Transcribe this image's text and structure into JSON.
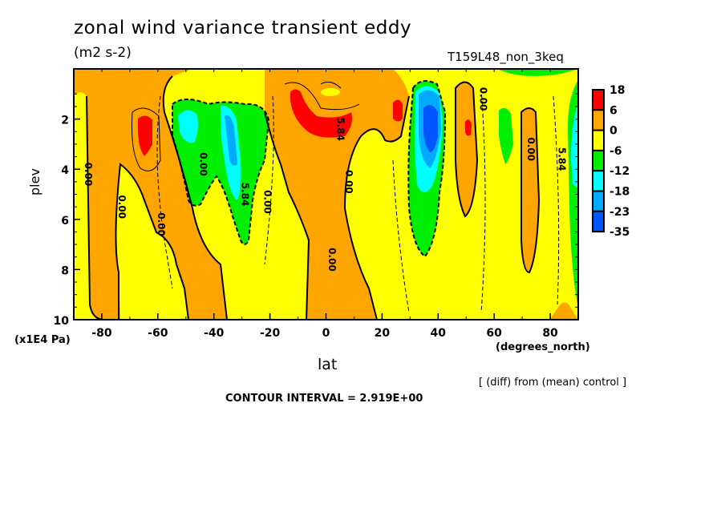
{
  "chart_data": {
    "type": "heatmap",
    "subtype": "filled-contour latitude-pressure cross section",
    "title": "zonal wind variance transient eddy",
    "units": "(m2 s-2)",
    "run_label": "T159L48_non_3keq",
    "xlabel": "lat",
    "xunits": "(degrees_north)",
    "ylabel": "plev",
    "yunits": "(x1E4 Pa)",
    "xlim": [
      -90,
      90
    ],
    "ylim": [
      10,
      0
    ],
    "xticks": [
      -80,
      -60,
      -40,
      -20,
      0,
      20,
      40,
      60,
      80
    ],
    "yticks": [
      2,
      4,
      6,
      8,
      10
    ],
    "note": "[ (diff) from (mean) control ]",
    "contour_interval_text": "CONTOUR INTERVAL = 2.919E+00",
    "contour_interval": 2.919,
    "colorbar": {
      "levels": [
        18,
        6,
        0,
        -6,
        -12,
        -18,
        -23,
        -35
      ],
      "colors": [
        "#ff0000",
        "#ffa500",
        "#ffff00",
        "#00ee00",
        "#00ffff",
        "#00aaff",
        "#0055ff"
      ]
    },
    "contour_labels": [
      {
        "text": "0.00",
        "lat": -86,
        "plev": 4.2
      },
      {
        "text": "0.00",
        "lat": -74,
        "plev": 5.5
      },
      {
        "text": "0.00",
        "lat": -60,
        "plev": 6.2
      },
      {
        "text": "0.00",
        "lat": -45,
        "plev": 3.8
      },
      {
        "text": "5.84",
        "lat": -30,
        "plev": 5.0
      },
      {
        "text": "0.00",
        "lat": -22,
        "plev": 5.3
      },
      {
        "text": "5.84",
        "lat": 4,
        "plev": 2.4
      },
      {
        "text": "0.00",
        "lat": 7,
        "plev": 4.5
      },
      {
        "text": "0.00",
        "lat": 1,
        "plev": 7.6
      },
      {
        "text": "0.00",
        "lat": 55,
        "plev": 1.2
      },
      {
        "text": "0.00",
        "lat": 72,
        "plev": 3.2
      },
      {
        "text": "5.84",
        "lat": 83,
        "plev": 3.6
      }
    ],
    "features": [
      {
        "name": "positive maximum",
        "lat": -64,
        "plev": 2.6,
        "class": "6 to 18"
      },
      {
        "name": "positive maximum",
        "lat": -6,
        "plev": 1.8,
        "class": "6 to 18"
      },
      {
        "name": "positive maximum",
        "lat": 26,
        "plev": 1.8,
        "class": "6 to 18"
      },
      {
        "name": "positive maximum",
        "lat": 50,
        "plev": 2.5,
        "class": "6 to 18"
      },
      {
        "name": "negative minimum",
        "lat": -49,
        "plev": 2.5,
        "class": "-18 to -12"
      },
      {
        "name": "negative minimum",
        "lat": -34,
        "plev": 3.3,
        "class": "-23 to -18"
      },
      {
        "name": "negative minimum",
        "lat": 38,
        "plev": 2.3,
        "class": "-35 to -23"
      },
      {
        "name": "negative band",
        "lat": 88,
        "plev": 4.0,
        "class": "-18 to -12"
      }
    ]
  }
}
